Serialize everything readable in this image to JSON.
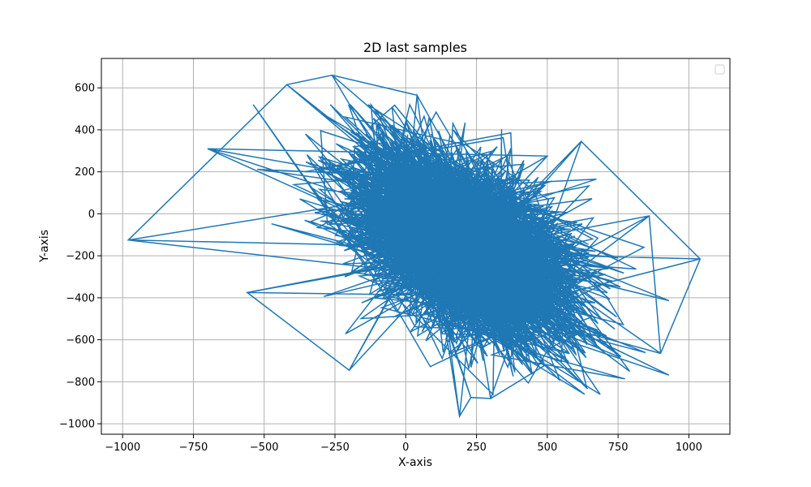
{
  "chart_data": {
    "type": "line",
    "title": "2D last samples",
    "xlabel": "X-axis",
    "ylabel": "Y-axis",
    "xlim": [
      -1075,
      1145
    ],
    "ylim": [
      -1050,
      740
    ],
    "xticks": [
      -1000,
      -750,
      -500,
      -250,
      0,
      250,
      500,
      750,
      1000
    ],
    "xtick_labels": [
      "−1000",
      "−750",
      "−500",
      "−250",
      "0",
      "250",
      "500",
      "750",
      "1000"
    ],
    "yticks": [
      -1000,
      -800,
      -600,
      -400,
      -200,
      0,
      200,
      400,
      600
    ],
    "ytick_labels": [
      "−1000",
      "−800",
      "−600",
      "−400",
      "−200",
      "0",
      "200",
      "400",
      "600"
    ],
    "grid": true,
    "legend": {
      "placement": "top-right",
      "entries": []
    },
    "series": [
      {
        "color": "#1f77b4",
        "description": "dense random walk of 2D samples",
        "points_x": [
          -980,
          -420,
          -260,
          40,
          190,
          230,
          300,
          620,
          1040,
          900,
          860,
          -560,
          -200,
          500,
          -700,
          0
        ],
        "points_y": [
          -125,
          615,
          660,
          565,
          -965,
          -875,
          -880,
          345,
          -215,
          -665,
          -10,
          -375,
          -745,
          275,
          310,
          0
        ]
      }
    ]
  },
  "colors": {
    "series": "#1f77b4",
    "grid": "#b0b0b0",
    "background": "#ffffff"
  }
}
